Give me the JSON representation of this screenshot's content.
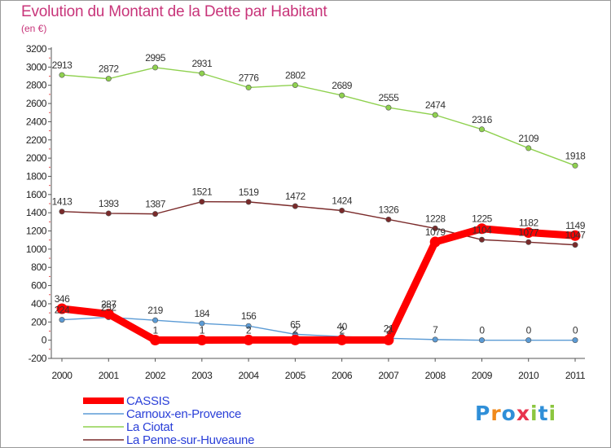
{
  "chart_data": {
    "type": "line",
    "title": "Evolution du Montant de la Dette par Habitant",
    "unit_label": "(en €)",
    "x": [
      "2000",
      "2001",
      "2002",
      "2003",
      "2004",
      "2005",
      "2006",
      "2007",
      "2008",
      "2009",
      "2010",
      "2011"
    ],
    "ylim": [
      -200,
      3200
    ],
    "yticks": [
      -200,
      0,
      200,
      400,
      600,
      800,
      1000,
      1200,
      1400,
      1600,
      1800,
      2000,
      2200,
      2400,
      2600,
      2800,
      3000,
      3200
    ],
    "grid": false,
    "legend_position": "bottom-left",
    "series": [
      {
        "name": "CASSIS",
        "color": "#ff0000",
        "emphasis": true,
        "values": [
          346,
          287,
          1,
          1,
          2,
          2,
          2,
          2,
          1079,
          1225,
          1182,
          1149
        ],
        "labels": [
          "346",
          "287",
          "1",
          "1",
          "2",
          "2",
          "2",
          "2",
          "1079",
          "1225",
          "1182",
          "1149"
        ]
      },
      {
        "name": "Carnoux-en-Provence",
        "color": "#5b9bd5",
        "emphasis": false,
        "values": [
          224,
          252,
          219,
          184,
          156,
          65,
          40,
          21,
          7,
          0,
          0,
          0
        ],
        "labels": [
          "224",
          "252",
          "219",
          "184",
          "156",
          "65",
          "40",
          "21",
          "7",
          "0",
          "0",
          "0"
        ]
      },
      {
        "name": "La Ciotat",
        "color": "#8fd14f",
        "emphasis": false,
        "values": [
          2913,
          2872,
          2995,
          2931,
          2776,
          2802,
          2689,
          2555,
          2474,
          2316,
          2109,
          1918
        ],
        "labels": [
          "2913",
          "2872",
          "2995",
          "2931",
          "2776",
          "2802",
          "2689",
          "2555",
          "2474",
          "2316",
          "2109",
          "1918"
        ]
      },
      {
        "name": "La Penne-sur-Huveaune",
        "color": "#7a2a2a",
        "emphasis": false,
        "values": [
          1413,
          1393,
          1387,
          1521,
          1519,
          1472,
          1424,
          1326,
          1228,
          1104,
          1077,
          1047
        ],
        "labels": [
          "1413",
          "1393",
          "1387",
          "1521",
          "1519",
          "1472",
          "1424",
          "1326",
          "1228",
          "1104",
          "1077",
          "1047"
        ]
      }
    ]
  },
  "logo": {
    "text": "Proxiti",
    "letter_colors": [
      "#2f8fd8",
      "#f08a1c",
      "#2f8fd8",
      "#e8344e",
      "#8cc63f",
      "#2f8fd8",
      "#8cc63f"
    ]
  }
}
